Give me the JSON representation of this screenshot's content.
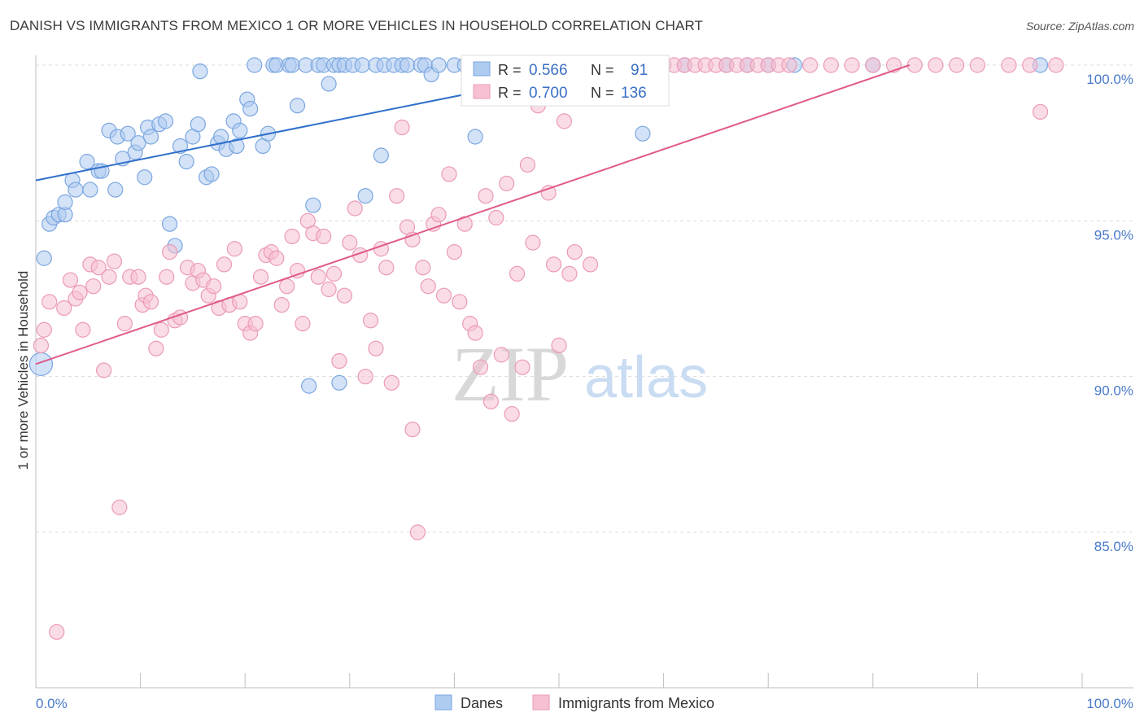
{
  "title": "DANISH VS IMMIGRANTS FROM MEXICO 1 OR MORE VEHICLES IN HOUSEHOLD CORRELATION CHART",
  "source": "Source: ZipAtlas.com",
  "watermark": {
    "zip": "ZIP",
    "atlas": "atlas"
  },
  "chart_data": {
    "type": "scatter",
    "title": "DANISH VS IMMIGRANTS FROM MEXICO 1 OR MORE VEHICLES IN HOUSEHOLD CORRELATION CHART",
    "xlabel": "",
    "ylabel": "1 or more Vehicles in Household",
    "xlim": [
      0,
      100
    ],
    "ylim": [
      80.5,
      100.8
    ],
    "x_tick_labels": {
      "left": "0.0%",
      "right": "100.0%"
    },
    "y_ticks": [
      {
        "value": 100,
        "label": "100.0%"
      },
      {
        "value": 95,
        "label": "95.0%"
      },
      {
        "value": 90,
        "label": "90.0%"
      },
      {
        "value": 85,
        "label": "85.0%"
      }
    ],
    "grid": true,
    "legend_position": "top-center",
    "stats": [
      {
        "series": "Danes",
        "r_label": "R = ",
        "r": "0.566",
        "n_label": "N = ",
        "n": "91"
      },
      {
        "series": "Immigrants from Mexico",
        "r_label": "R = ",
        "r": "0.700",
        "n_label": "N = ",
        "n": "136"
      }
    ],
    "series": [
      {
        "name": "Danes",
        "color": "#7aa6e0",
        "fill": "#aecbf0",
        "line_color": "#2f6fcc",
        "trend": {
          "x": [
            0,
            55
          ],
          "y": [
            96.3,
            100.0
          ]
        },
        "points": [
          [
            0.5,
            90.4
          ],
          [
            0.8,
            93.8
          ],
          [
            1.3,
            94.9
          ],
          [
            1.7,
            95.1
          ],
          [
            2.2,
            95.2
          ],
          [
            2.8,
            95.2
          ],
          [
            2.8,
            95.6
          ],
          [
            3.5,
            96.3
          ],
          [
            3.8,
            96.0
          ],
          [
            4.9,
            96.9
          ],
          [
            5.2,
            96.0
          ],
          [
            6.0,
            96.6
          ],
          [
            6.3,
            96.6
          ],
          [
            7.0,
            97.9
          ],
          [
            7.6,
            96.0
          ],
          [
            7.8,
            97.7
          ],
          [
            8.3,
            97.0
          ],
          [
            8.8,
            97.8
          ],
          [
            9.5,
            97.2
          ],
          [
            9.8,
            97.5
          ],
          [
            10.4,
            96.4
          ],
          [
            10.7,
            98.0
          ],
          [
            11.0,
            97.7
          ],
          [
            11.8,
            98.1
          ],
          [
            12.4,
            98.2
          ],
          [
            12.8,
            94.9
          ],
          [
            13.3,
            94.2
          ],
          [
            13.8,
            97.4
          ],
          [
            14.4,
            96.9
          ],
          [
            15.0,
            97.7
          ],
          [
            15.5,
            98.1
          ],
          [
            15.7,
            99.8
          ],
          [
            16.3,
            96.4
          ],
          [
            16.8,
            96.5
          ],
          [
            17.4,
            97.5
          ],
          [
            17.7,
            97.7
          ],
          [
            18.2,
            97.3
          ],
          [
            18.9,
            98.2
          ],
          [
            19.2,
            97.4
          ],
          [
            19.5,
            97.9
          ],
          [
            20.2,
            98.9
          ],
          [
            20.5,
            98.6
          ],
          [
            20.9,
            100
          ],
          [
            21.7,
            97.4
          ],
          [
            22.2,
            97.8
          ],
          [
            22.7,
            100
          ],
          [
            23.0,
            100
          ],
          [
            24.2,
            100
          ],
          [
            24.5,
            100
          ],
          [
            25.0,
            98.7
          ],
          [
            25.8,
            100
          ],
          [
            26.1,
            89.7
          ],
          [
            26.5,
            95.5
          ],
          [
            27.0,
            100
          ],
          [
            27.5,
            100
          ],
          [
            28.0,
            99.4
          ],
          [
            28.5,
            100
          ],
          [
            29.0,
            100
          ],
          [
            29.5,
            100
          ],
          [
            29.0,
            89.8
          ],
          [
            30.3,
            100
          ],
          [
            31.2,
            100
          ],
          [
            31.5,
            95.8
          ],
          [
            32.5,
            100
          ],
          [
            33.0,
            97.1
          ],
          [
            33.3,
            100
          ],
          [
            34.2,
            100
          ],
          [
            35.0,
            100
          ],
          [
            35.5,
            100
          ],
          [
            36.8,
            100
          ],
          [
            37.2,
            100
          ],
          [
            37.8,
            99.7
          ],
          [
            38.5,
            100
          ],
          [
            40.0,
            100
          ],
          [
            41.0,
            100
          ],
          [
            42.0,
            97.7
          ],
          [
            42.8,
            100
          ],
          [
            43.5,
            100
          ],
          [
            45.2,
            100
          ],
          [
            46.0,
            100
          ],
          [
            49.0,
            100
          ],
          [
            50.5,
            100
          ],
          [
            54.0,
            100
          ],
          [
            58.0,
            97.8
          ],
          [
            60.0,
            100
          ],
          [
            62.0,
            100
          ],
          [
            66.0,
            100
          ],
          [
            68.0,
            100
          ],
          [
            70.0,
            100
          ],
          [
            72.5,
            100
          ],
          [
            80.0,
            100
          ],
          [
            96.0,
            100
          ]
        ]
      },
      {
        "name": "Immigrants from Mexico",
        "color": "#eb9ab6",
        "fill": "#f6c0d2",
        "line_color": "#e05a8a",
        "trend": {
          "x": [
            0,
            83.5
          ],
          "y": [
            90.4,
            100.0
          ]
        },
        "points": [
          [
            0.5,
            91.0
          ],
          [
            0.8,
            91.5
          ],
          [
            1.3,
            92.4
          ],
          [
            2.0,
            81.8
          ],
          [
            2.7,
            92.2
          ],
          [
            3.3,
            93.1
          ],
          [
            3.8,
            92.5
          ],
          [
            4.2,
            92.7
          ],
          [
            4.5,
            91.5
          ],
          [
            5.2,
            93.6
          ],
          [
            5.5,
            92.9
          ],
          [
            6.0,
            93.5
          ],
          [
            6.5,
            90.2
          ],
          [
            7.0,
            93.2
          ],
          [
            7.5,
            93.7
          ],
          [
            8.0,
            85.8
          ],
          [
            8.5,
            91.7
          ],
          [
            9.0,
            93.2
          ],
          [
            9.8,
            93.2
          ],
          [
            10.2,
            92.3
          ],
          [
            10.5,
            92.6
          ],
          [
            11.0,
            92.4
          ],
          [
            11.5,
            90.9
          ],
          [
            12.0,
            91.5
          ],
          [
            12.5,
            93.2
          ],
          [
            12.8,
            94.0
          ],
          [
            13.3,
            91.8
          ],
          [
            13.8,
            91.9
          ],
          [
            14.5,
            93.5
          ],
          [
            15.0,
            93.0
          ],
          [
            15.5,
            93.4
          ],
          [
            16.0,
            93.1
          ],
          [
            16.5,
            92.6
          ],
          [
            17.0,
            92.9
          ],
          [
            17.5,
            92.2
          ],
          [
            18.0,
            93.6
          ],
          [
            18.5,
            92.3
          ],
          [
            19.0,
            94.1
          ],
          [
            19.5,
            92.4
          ],
          [
            20.0,
            91.7
          ],
          [
            20.5,
            91.4
          ],
          [
            21.0,
            91.7
          ],
          [
            21.5,
            93.2
          ],
          [
            22.0,
            93.9
          ],
          [
            22.5,
            94.0
          ],
          [
            23.0,
            93.8
          ],
          [
            23.5,
            92.3
          ],
          [
            24.0,
            92.9
          ],
          [
            24.5,
            94.5
          ],
          [
            25.0,
            93.4
          ],
          [
            25.5,
            91.7
          ],
          [
            26.0,
            95.0
          ],
          [
            26.5,
            94.6
          ],
          [
            27.0,
            93.2
          ],
          [
            27.5,
            94.5
          ],
          [
            28.0,
            92.8
          ],
          [
            28.5,
            93.3
          ],
          [
            29.0,
            90.5
          ],
          [
            29.5,
            92.6
          ],
          [
            30.0,
            94.3
          ],
          [
            30.5,
            95.4
          ],
          [
            31.0,
            93.9
          ],
          [
            31.5,
            90.0
          ],
          [
            32.0,
            91.8
          ],
          [
            32.5,
            90.9
          ],
          [
            33.0,
            94.1
          ],
          [
            33.5,
            93.5
          ],
          [
            34.0,
            89.8
          ],
          [
            34.5,
            95.8
          ],
          [
            35.0,
            98.0
          ],
          [
            35.5,
            94.8
          ],
          [
            36.0,
            94.4
          ],
          [
            36.5,
            85.0
          ],
          [
            37.0,
            93.5
          ],
          [
            37.5,
            92.9
          ],
          [
            38.0,
            94.9
          ],
          [
            38.5,
            95.2
          ],
          [
            39.0,
            92.6
          ],
          [
            39.5,
            96.5
          ],
          [
            40.0,
            94.0
          ],
          [
            40.5,
            92.4
          ],
          [
            41.0,
            94.9
          ],
          [
            41.5,
            91.7
          ],
          [
            42.0,
            91.4
          ],
          [
            42.5,
            90.3
          ],
          [
            43.0,
            95.8
          ],
          [
            43.5,
            89.2
          ],
          [
            44.0,
            95.1
          ],
          [
            44.5,
            90.7
          ],
          [
            45.0,
            96.2
          ],
          [
            45.5,
            88.8
          ],
          [
            46.0,
            93.3
          ],
          [
            46.5,
            90.3
          ],
          [
            47.0,
            96.8
          ],
          [
            47.5,
            94.3
          ],
          [
            48.0,
            98.7
          ],
          [
            48.5,
            99.3
          ],
          [
            49.0,
            95.9
          ],
          [
            49.5,
            93.6
          ],
          [
            50.0,
            91.0
          ],
          [
            50.5,
            98.2
          ],
          [
            51.0,
            93.3
          ],
          [
            51.5,
            94.0
          ],
          [
            52.0,
            100
          ],
          [
            52.5,
            100
          ],
          [
            53.0,
            93.6
          ],
          [
            53.5,
            100
          ],
          [
            54.0,
            100
          ],
          [
            55.0,
            100
          ],
          [
            56.0,
            100
          ],
          [
            57.0,
            100
          ],
          [
            58.0,
            100
          ],
          [
            59.0,
            100
          ],
          [
            60.0,
            100
          ],
          [
            61.0,
            100
          ],
          [
            62.0,
            100
          ],
          [
            63.0,
            100
          ],
          [
            64.0,
            100
          ],
          [
            65.0,
            100
          ],
          [
            66.0,
            100
          ],
          [
            67.0,
            100
          ],
          [
            68.0,
            100
          ],
          [
            69.0,
            100
          ],
          [
            70.0,
            100
          ],
          [
            71.0,
            100
          ],
          [
            72.0,
            100
          ],
          [
            74.0,
            100
          ],
          [
            76.0,
            100
          ],
          [
            78.0,
            100
          ],
          [
            80.0,
            100
          ],
          [
            82.0,
            100
          ],
          [
            84.0,
            100
          ],
          [
            86.0,
            100
          ],
          [
            88.0,
            100
          ],
          [
            90.0,
            100
          ],
          [
            93.0,
            100
          ],
          [
            95.0,
            100
          ],
          [
            96.0,
            98.5
          ],
          [
            97.5,
            100
          ],
          [
            36.0,
            88.3
          ]
        ]
      }
    ]
  }
}
